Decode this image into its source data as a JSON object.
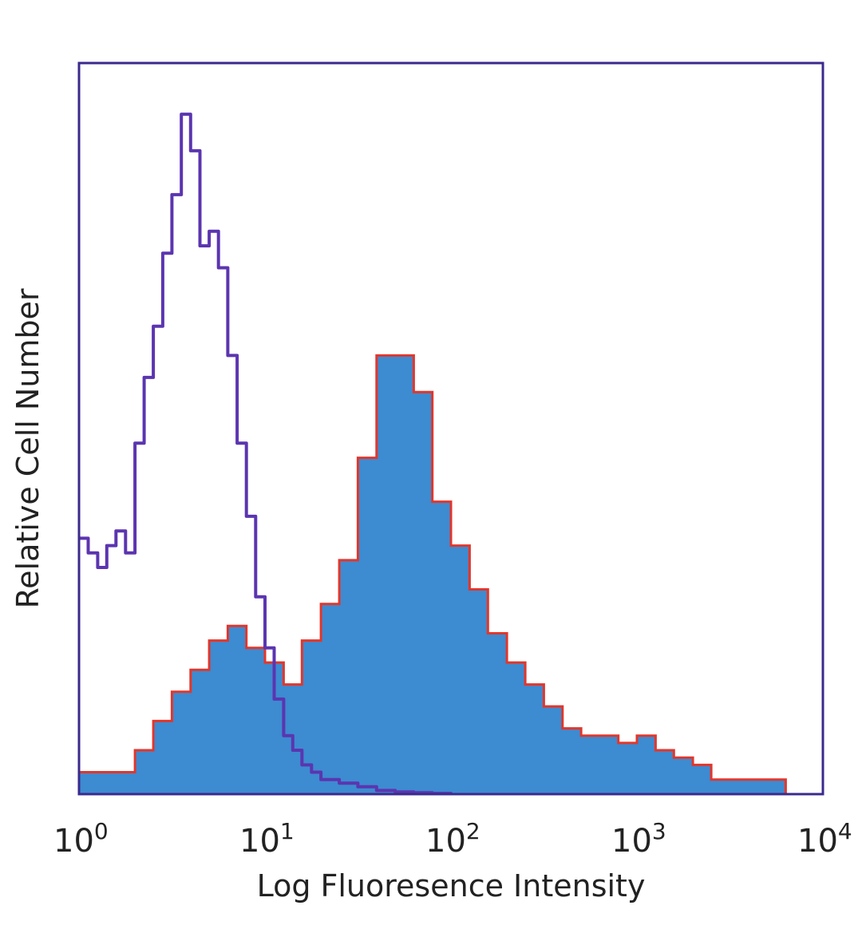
{
  "chart_data": {
    "type": "area",
    "title": "",
    "xlabel": "Log Fluoresence Intensity",
    "ylabel": "Relative Cell Number",
    "x_scale": "log",
    "xlim": [
      1,
      10000
    ],
    "ylim": [
      0,
      100
    ],
    "x_ticks": [
      {
        "base": "10",
        "exp": "0",
        "value": 1
      },
      {
        "base": "10",
        "exp": "1",
        "value": 10
      },
      {
        "base": "10",
        "exp": "2",
        "value": 100
      },
      {
        "base": "10",
        "exp": "3",
        "value": 1000
      },
      {
        "base": "10",
        "exp": "4",
        "value": 10000
      }
    ],
    "grid": false,
    "colors": {
      "frame": "#3b2a8c",
      "control": "#5b35b0",
      "stained_fill": "#3d8bd1",
      "stained_edge": "#e2362b"
    },
    "series": [
      {
        "style": "outline",
        "x": [
          1,
          1.12,
          1.26,
          1.41,
          1.58,
          1.78,
          2.0,
          2.24,
          2.51,
          2.82,
          3.16,
          3.55,
          3.98,
          4.47,
          5.01,
          5.62,
          6.31,
          7.08,
          7.94,
          8.91,
          10.0,
          11.2,
          12.6,
          14.1,
          15.8,
          17.8,
          20.0,
          25.1,
          31.6,
          39.8,
          50.1,
          63.1,
          79.4,
          100
        ],
        "y": [
          35,
          33,
          31,
          34,
          36,
          33,
          48,
          57,
          64,
          74,
          82,
          93,
          88,
          75,
          77,
          72,
          60,
          48,
          38,
          27,
          20,
          13,
          8,
          6,
          4,
          3,
          2,
          1.5,
          1,
          0.5,
          0.3,
          0.2,
          0.1,
          0
        ]
      },
      {
        "style": "filled",
        "x": [
          1,
          1.26,
          1.58,
          2.0,
          2.51,
          3.16,
          3.98,
          5.01,
          6.31,
          7.94,
          10.0,
          12.6,
          15.8,
          20.0,
          25.1,
          31.6,
          39.8,
          50.1,
          63.1,
          79.4,
          100,
          126,
          158,
          200,
          251,
          316,
          398,
          501,
          631,
          794,
          1000,
          1260,
          1580,
          2000,
          2510,
          3160,
          3980,
          5010,
          6310,
          10000
        ],
        "y": [
          3,
          3,
          3,
          6,
          10,
          14,
          17,
          21,
          23,
          20,
          18,
          15,
          21,
          26,
          32,
          46,
          60,
          60,
          55,
          40,
          34,
          28,
          22,
          18,
          15,
          12,
          9,
          8,
          8,
          7,
          8,
          6,
          5,
          4,
          2,
          2,
          2,
          2,
          0,
          0
        ]
      }
    ]
  }
}
